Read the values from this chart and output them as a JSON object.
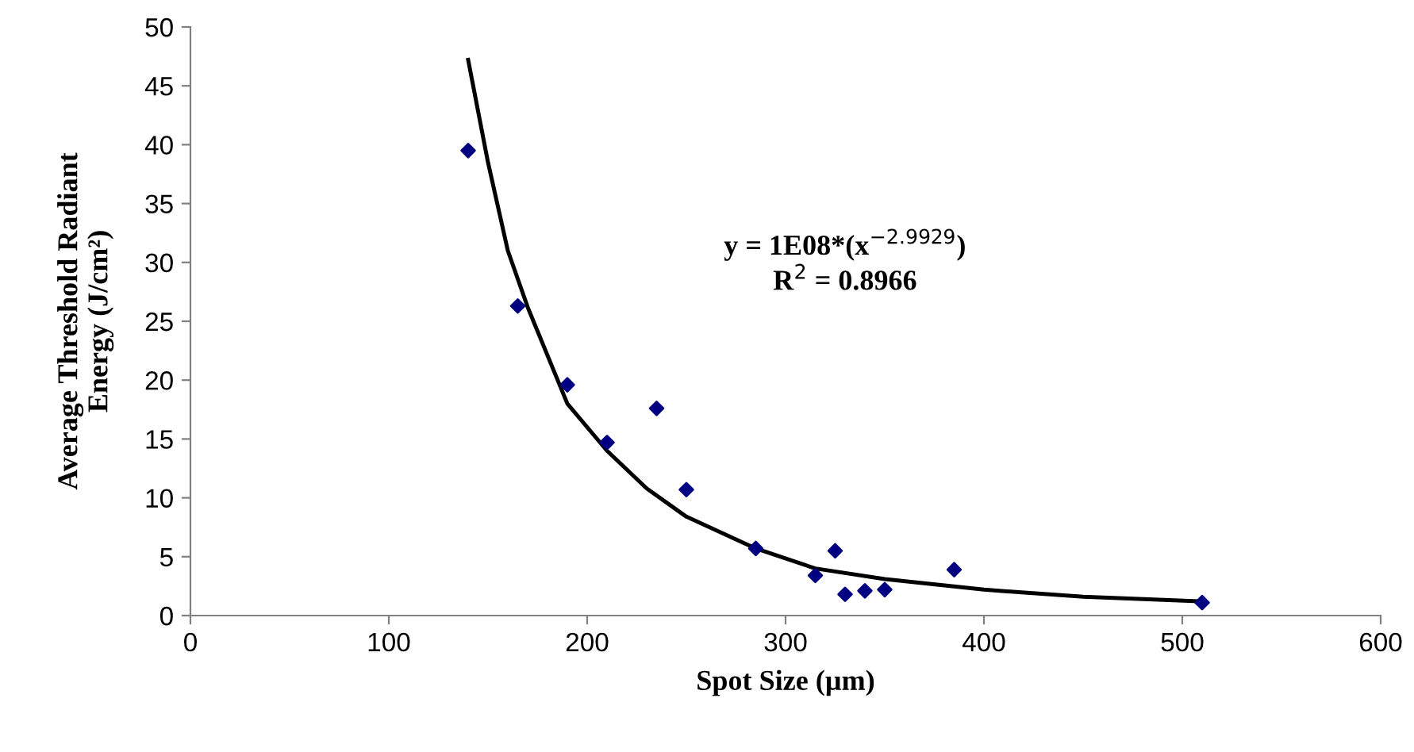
{
  "chart_data": {
    "type": "scatter",
    "xlabel": "Spot Size (µm)",
    "ylabel": "Average Threshold Radiant\nEnergy (J/cm²)",
    "annotations": [
      "y = 1E08*(x$^{−2.9929}$)\nR$^{2}$ = 0.8966"
    ],
    "xlim": [
      0,
      600
    ],
    "xticks": [
      0,
      100,
      200,
      300,
      400,
      500,
      600
    ],
    "ylim": [
      0,
      50
    ],
    "yticks": [
      0,
      5,
      10,
      15,
      20,
      25,
      30,
      35,
      40,
      45,
      50
    ],
    "grid": false,
    "legend": false,
    "marker": "diamond",
    "series": [
      {
        "color": "#000080",
        "x": [
          140,
          165,
          190,
          210,
          235,
          250,
          285,
          315,
          325,
          330,
          340,
          350,
          385,
          510
        ],
        "values": [
          39.5,
          26.3,
          19.6,
          14.7,
          17.6,
          10.7,
          5.7,
          3.4,
          5.5,
          1.8,
          2.1,
          2.2,
          3.9,
          1.1
        ]
      },
      {
        "type": "line",
        "color": "#000000",
        "line_style": "solid",
        "marker": "none",
        "x": [
          140,
          150,
          160,
          170,
          190,
          210,
          230,
          250,
          285,
          315,
          350,
          400,
          450,
          510
        ],
        "values": [
          47.2,
          38.5,
          31.0,
          26.2,
          18.0,
          14.0,
          10.8,
          8.4,
          5.7,
          4.0,
          3.1,
          2.2,
          1.6,
          1.2
        ]
      }
    ]
  }
}
